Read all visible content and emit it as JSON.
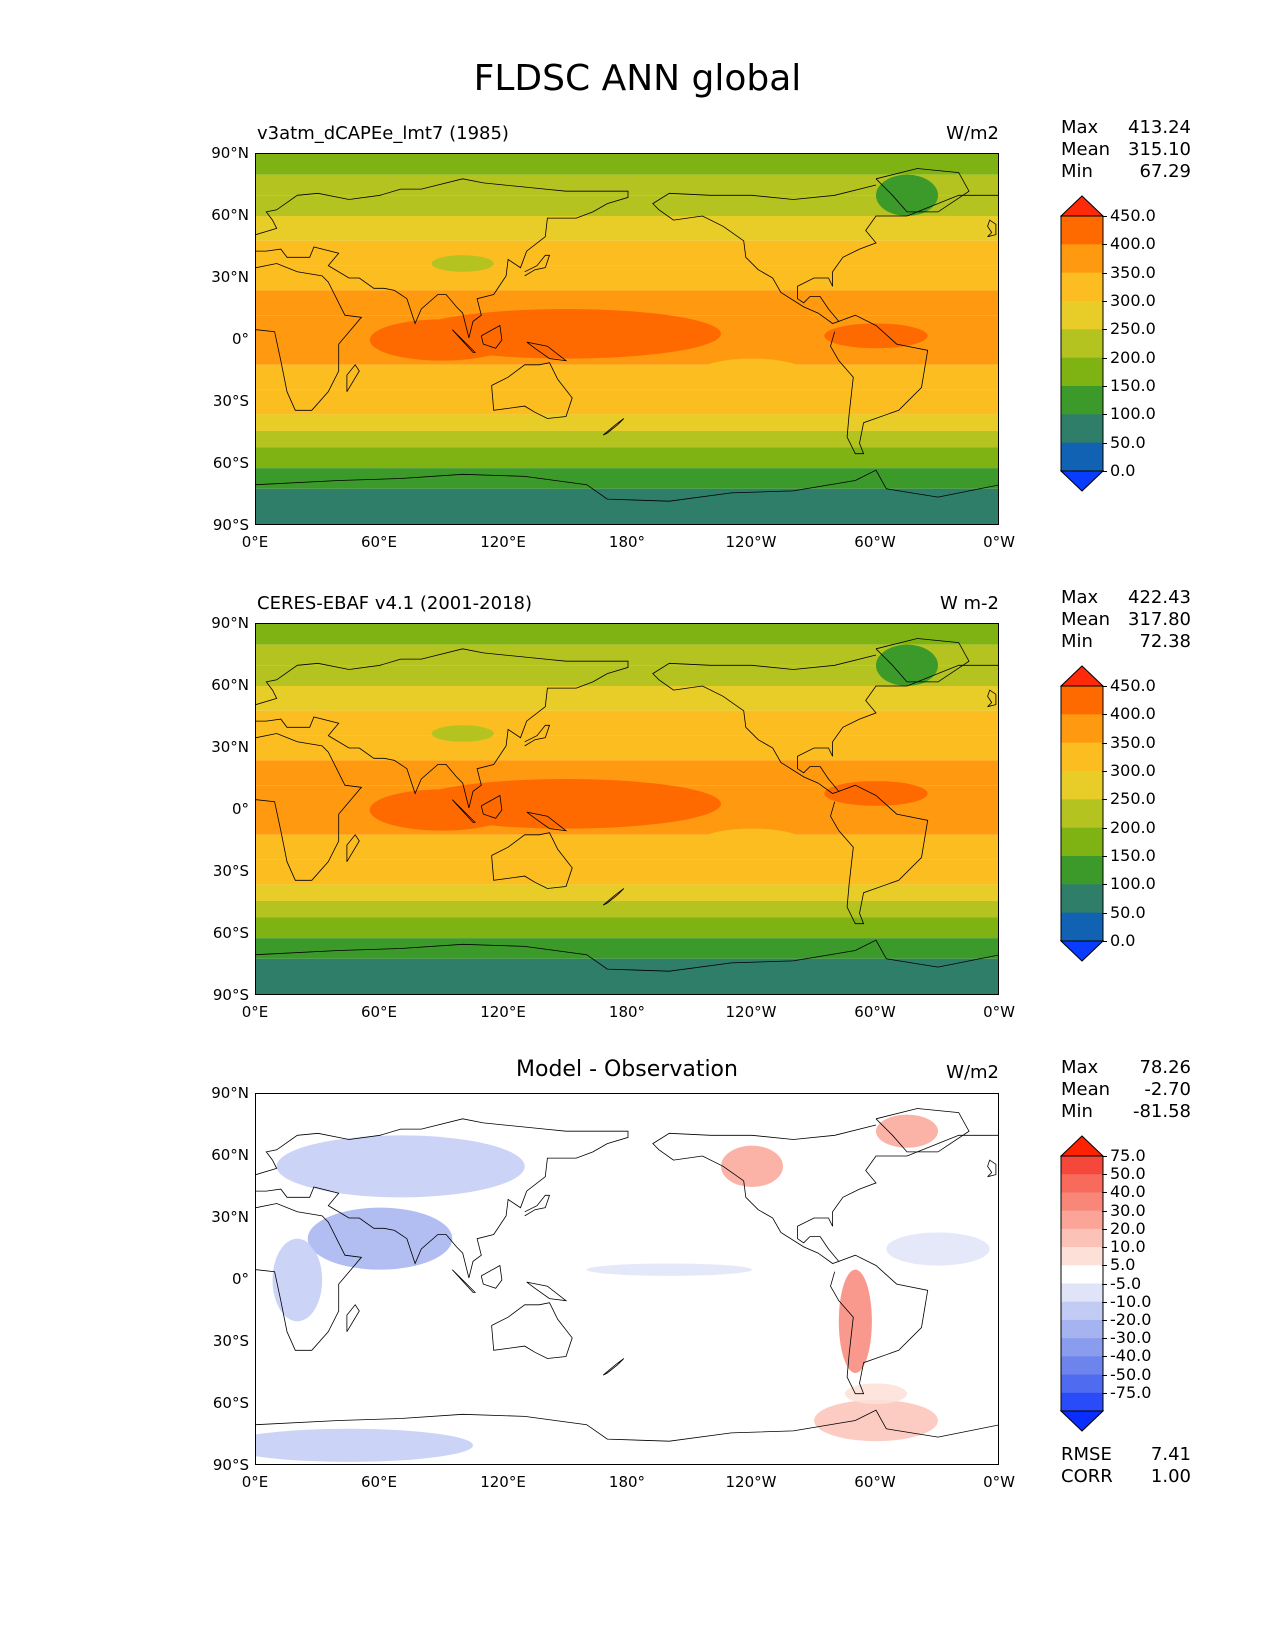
{
  "figure_title": "FLDSC ANN global",
  "lat_labels": [
    "90°N",
    "60°N",
    "30°N",
    "0°",
    "30°S",
    "60°S",
    "90°S"
  ],
  "lon_labels": [
    "0°E",
    "60°E",
    "120°E",
    "180°",
    "120°W",
    "60°W",
    "0°W"
  ],
  "panels": [
    {
      "title": "v3atm_dCAPEe_lmt7 (1985)",
      "units": "W/m2",
      "stats": {
        "max_label": "Max",
        "max": "413.24",
        "mean_label": "Mean",
        "mean": "315.10",
        "min_label": "Min",
        "min": "67.29"
      },
      "colorbar": {
        "labels": [
          "450.0",
          "400.0",
          "350.0",
          "300.0",
          "250.0",
          "200.0",
          "150.0",
          "100.0",
          "50.0",
          "0.0"
        ],
        "colors": [
          "#ff2a0a",
          "#ff6a00",
          "#ff9a10",
          "#fbbd20",
          "#e8cc28",
          "#b4c320",
          "#7fb314",
          "#3c9a2a",
          "#2e7e6a",
          "#1162b2",
          "#0a3cff"
        ]
      }
    },
    {
      "title": "CERES-EBAF v4.1 (2001-2018)",
      "units": "W m-2",
      "stats": {
        "max_label": "Max",
        "max": "422.43",
        "mean_label": "Mean",
        "mean": "317.80",
        "min_label": "Min",
        "min": "72.38"
      },
      "colorbar": {
        "labels": [
          "450.0",
          "400.0",
          "350.0",
          "300.0",
          "250.0",
          "200.0",
          "150.0",
          "100.0",
          "50.0",
          "0.0"
        ],
        "colors": [
          "#ff2a0a",
          "#ff6a00",
          "#ff9a10",
          "#fbbd20",
          "#e8cc28",
          "#b4c320",
          "#7fb314",
          "#3c9a2a",
          "#2e7e6a",
          "#1162b2",
          "#0a3cff"
        ]
      }
    },
    {
      "title": "Model - Observation",
      "units": "W/m2",
      "stats": {
        "max_label": "Max",
        "max": "78.26",
        "mean_label": "Mean",
        "mean": "-2.70",
        "min_label": "Min",
        "min": "-81.58"
      },
      "colorbar": {
        "labels": [
          "75.0",
          "50.0",
          "40.0",
          "30.0",
          "20.0",
          "10.0",
          "5.0",
          "-5.0",
          "-10.0",
          "-20.0",
          "-30.0",
          "-40.0",
          "-50.0",
          "-75.0"
        ],
        "colors": [
          "#ff2200",
          "#f5483a",
          "#f76a5c",
          "#f8877a",
          "#faa598",
          "#fbc3b8",
          "#fde0d8",
          "#ffffff",
          "#dfe4f8",
          "#c2cbf4",
          "#a5b3f0",
          "#8a9cee",
          "#6d84ec",
          "#4f6cf0",
          "#2a4cf8",
          "#0a2eff"
        ]
      },
      "rmse_label": "RMSE",
      "rmse": "7.41",
      "corr_label": "CORR",
      "corr": "1.00"
    }
  ]
}
